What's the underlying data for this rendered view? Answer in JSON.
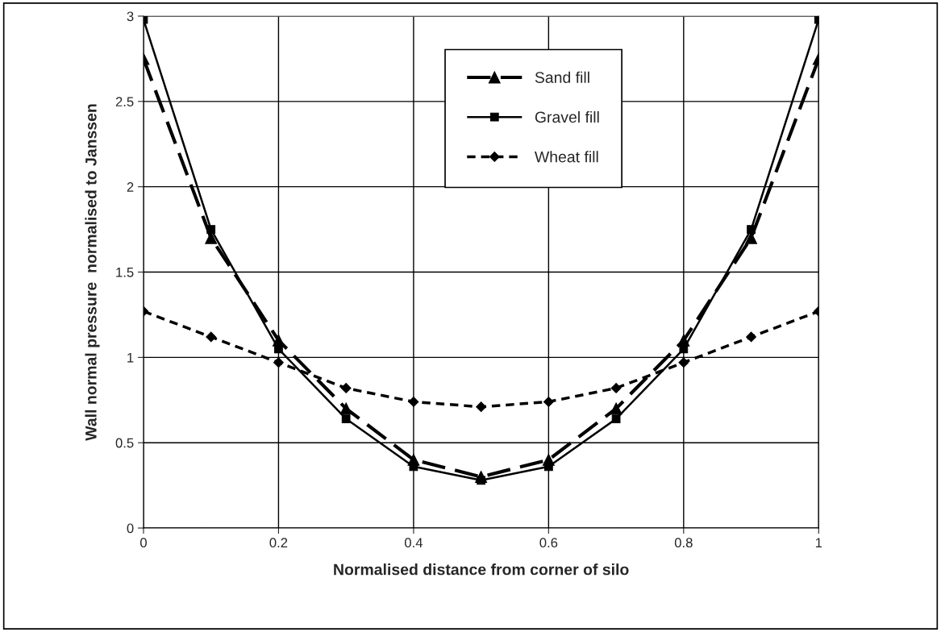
{
  "chart_data": {
    "type": "line",
    "xlabel": "Normalised distance from corner of silo",
    "ylabel": "Wall normal pressure  normalised to Janssen",
    "x": [
      0,
      0.1,
      0.2,
      0.3,
      0.4,
      0.5,
      0.6,
      0.7,
      0.8,
      0.9,
      1
    ],
    "series": [
      {
        "name": "Sand fill",
        "color": "#000000",
        "marker": "triangle",
        "line_style": "dashed",
        "values": [
          2.75,
          1.7,
          1.1,
          0.7,
          0.4,
          0.3,
          0.4,
          0.7,
          1.1,
          1.7,
          2.75
        ]
      },
      {
        "name": "Gravel fill",
        "color": "#000000",
        "marker": "square",
        "line_style": "solid",
        "values": [
          2.98,
          1.75,
          1.05,
          0.64,
          0.36,
          0.28,
          0.36,
          0.64,
          1.05,
          1.75,
          2.98
        ]
      },
      {
        "name": "Wheat fill",
        "color": "#000000",
        "marker": "diamond",
        "line_style": "dotted",
        "values": [
          1.27,
          1.12,
          0.97,
          0.82,
          0.74,
          0.71,
          0.74,
          0.82,
          0.97,
          1.12,
          1.27
        ]
      }
    ],
    "xlim": [
      0,
      1
    ],
    "xticks": [
      0,
      0.2,
      0.4,
      0.6,
      0.8,
      1
    ],
    "ylim": [
      0,
      3
    ],
    "yticks": [
      0,
      0.5,
      1,
      1.5,
      2,
      2.5,
      3
    ],
    "grid": true,
    "legend": "top right"
  }
}
